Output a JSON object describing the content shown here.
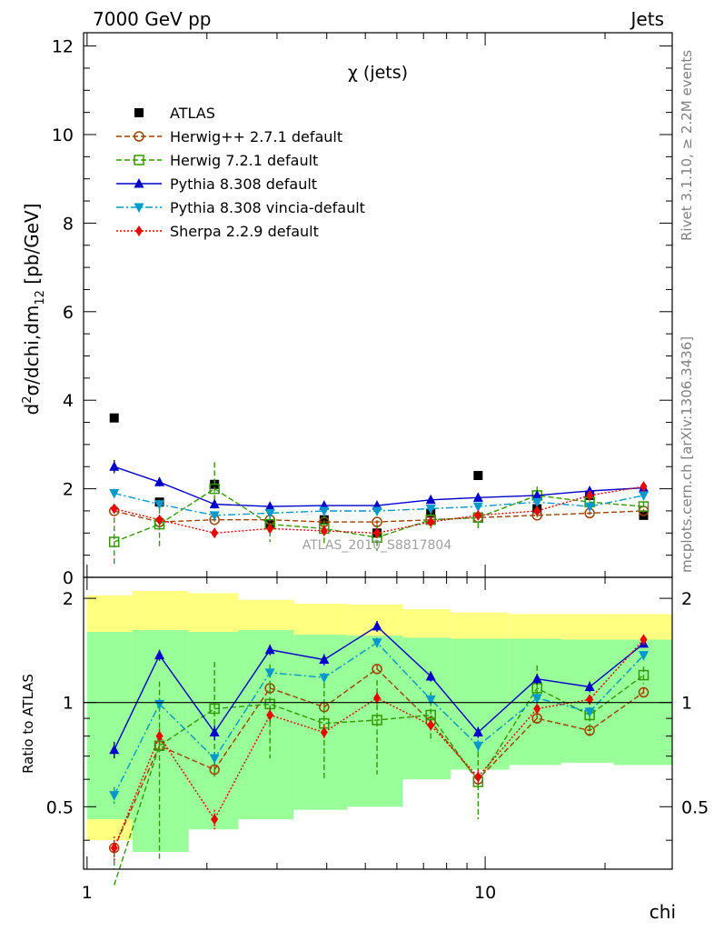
{
  "header": {
    "left": "7000 GeV pp",
    "right": "Jets"
  },
  "side_text": {
    "top": "Rivet 3.1.10, ≥ 2.2M events",
    "bottom": "mcplots.cern.ch [arXiv:1306.3436]"
  },
  "watermark": "ATLAS_2010_S8817804",
  "chart_data": [
    {
      "panel": "main",
      "type": "line",
      "title": "χ (jets)",
      "xlabel": "chi",
      "ylabel": "d²σ/dchi,dm₁₂ [pb/GeV]",
      "ylabel_parts": {
        "pre": "d",
        "sup": "2",
        "mid": "σ/dchi,dm",
        "sub": "12",
        "post": " [pb/GeV]"
      },
      "xscale": "log",
      "xlim": [
        0.98,
        29.5
      ],
      "ylim": [
        0,
        12.3
      ],
      "yticks": [
        "0",
        "2",
        "4",
        "6",
        "8",
        "10",
        "12"
      ],
      "grid": false,
      "legend_position": "top-left",
      "x": [
        1.17,
        1.52,
        2.09,
        2.88,
        3.94,
        5.35,
        7.3,
        9.6,
        13.5,
        18.3,
        25
      ],
      "series": [
        {
          "name": "ATLAS",
          "color": "#000000",
          "marker": "square",
          "values": [
            3.6,
            1.7,
            2.1,
            1.2,
            1.3,
            1.0,
            1.45,
            2.3,
            1.55,
            1.85,
            1.4
          ],
          "errors": [
            0.05,
            0.05,
            0.05,
            0.05,
            0.05,
            0.05,
            0.05,
            0.05,
            0.05,
            0.05,
            0.05
          ]
        },
        {
          "name": "Herwig++ 2.7.1 default",
          "color": "#a04000",
          "marker": "circle-open",
          "dash": "6,3",
          "values": [
            1.5,
            1.25,
            1.3,
            1.3,
            1.25,
            1.25,
            1.3,
            1.35,
            1.4,
            1.45,
            1.5
          ],
          "errors": [
            0.05,
            0.04,
            0.04,
            0.04,
            0.04,
            0.04,
            0.04,
            0.04,
            0.04,
            0.04,
            0.04
          ]
        },
        {
          "name": "Herwig 7.2.1 default",
          "color": "#339900",
          "marker": "square-open",
          "dash": "6,3",
          "values": [
            0.8,
            1.2,
            2.0,
            1.2,
            1.1,
            0.9,
            1.3,
            1.35,
            1.85,
            1.7,
            1.6
          ],
          "errors": [
            0.55,
            0.55,
            0.6,
            0.4,
            0.35,
            0.3,
            0.2,
            0.25,
            0.2,
            0.15,
            0.1
          ]
        },
        {
          "name": "Pythia 8.308 default",
          "color": "#0000cc",
          "marker": "triangle-up",
          "values": [
            2.5,
            2.15,
            1.65,
            1.6,
            1.62,
            1.62,
            1.75,
            1.8,
            1.85,
            1.95,
            2.02
          ],
          "errors": [
            0.15,
            0.1,
            0.08,
            0.07,
            0.06,
            0.06,
            0.05,
            0.05,
            0.05,
            0.05,
            0.05
          ]
        },
        {
          "name": "Pythia 8.308 vincia-default",
          "color": "#0099cc",
          "marker": "triangle-down",
          "dash": "8,3,2,3",
          "values": [
            1.9,
            1.65,
            1.4,
            1.45,
            1.5,
            1.5,
            1.55,
            1.6,
            1.7,
            1.6,
            1.85
          ],
          "errors": [
            0.1,
            0.08,
            0.07,
            0.06,
            0.06,
            0.06,
            0.05,
            0.05,
            0.05,
            0.05,
            0.05
          ]
        },
        {
          "name": "Sherpa 2.2.9 default",
          "color": "#ee0000",
          "marker": "diamond",
          "dash": "2,2",
          "values": [
            1.55,
            1.3,
            1.0,
            1.1,
            1.05,
            1.0,
            1.25,
            1.4,
            1.5,
            1.85,
            2.05
          ],
          "errors": [
            0.08,
            0.06,
            0.06,
            0.06,
            0.06,
            0.06,
            0.05,
            0.05,
            0.05,
            0.05,
            0.05
          ]
        }
      ]
    },
    {
      "panel": "ratio",
      "type": "line",
      "ylabel": "Ratio to ATLAS",
      "xlabel": "chi",
      "xscale": "log",
      "yscale": "log",
      "xlim": [
        0.98,
        29.5
      ],
      "ylim": [
        0.33,
        2.3
      ],
      "yticks": [
        "0.5",
        "1",
        "2"
      ],
      "xticks": [
        "1",
        "10"
      ],
      "reference_line": 1,
      "bin_edges": [
        1.0,
        1.3,
        1.8,
        2.4,
        3.3,
        4.5,
        6.2,
        8.2,
        11.5,
        15.5,
        21.0,
        29.5
      ],
      "bands": {
        "total_uncertainty": {
          "color": "#ffff80",
          "lower": [
            0.4,
            0.4,
            0.48,
            0.5,
            0.53,
            0.52,
            0.62,
            0.66,
            0.67,
            0.68,
            0.67
          ],
          "upper": [
            2.04,
            2.1,
            2.07,
            1.98,
            1.93,
            1.92,
            1.86,
            1.82,
            1.8,
            1.8,
            1.8
          ]
        },
        "statistical": {
          "color": "#99ff99",
          "lower": [
            0.46,
            0.37,
            0.43,
            0.46,
            0.49,
            0.5,
            0.6,
            0.64,
            0.66,
            0.67,
            0.66
          ],
          "upper": [
            1.6,
            1.62,
            1.6,
            1.62,
            1.57,
            1.56,
            1.54,
            1.53,
            1.53,
            1.52,
            1.52
          ]
        }
      },
      "x": [
        1.17,
        1.52,
        2.09,
        2.88,
        3.94,
        5.35,
        7.3,
        9.6,
        13.5,
        18.3,
        25
      ],
      "series": [
        {
          "name": "Herwig++ 2.7.1 default",
          "color": "#a04000",
          "marker": "circle-open",
          "dash": "6,3",
          "values": [
            0.38,
            0.75,
            0.64,
            1.1,
            0.97,
            1.25,
            0.88,
            0.6,
            0.9,
            0.83,
            1.07
          ],
          "errors": [
            0.02,
            0.03,
            0.03,
            0.04,
            0.04,
            0.04,
            0.03,
            0.03,
            0.03,
            0.03,
            0.03
          ]
        },
        {
          "name": "Herwig 7.2.1 default",
          "color": "#339900",
          "marker": "square-open",
          "dash": "6,3",
          "values": [
            0.25,
            0.75,
            0.96,
            0.99,
            0.87,
            0.89,
            0.92,
            0.59,
            1.1,
            0.92,
            1.2
          ],
          "errors": [
            0.12,
            0.4,
            0.35,
            0.3,
            0.27,
            0.27,
            0.15,
            0.13,
            0.18,
            0.1,
            0.07
          ]
        },
        {
          "name": "Pythia 8.308 default",
          "color": "#0000cc",
          "marker": "triangle-up",
          "values": [
            0.73,
            1.37,
            0.82,
            1.42,
            1.33,
            1.66,
            1.19,
            0.82,
            1.17,
            1.11,
            1.48
          ],
          "errors": [
            0.04,
            0.05,
            0.04,
            0.05,
            0.05,
            0.06,
            0.04,
            0.03,
            0.04,
            0.04,
            0.04
          ]
        },
        {
          "name": "Pythia 8.308 vincia-default",
          "color": "#0099cc",
          "marker": "triangle-down",
          "dash": "8,3,2,3",
          "values": [
            0.54,
            0.99,
            0.69,
            1.22,
            1.18,
            1.49,
            1.02,
            0.75,
            1.03,
            0.94,
            1.37
          ],
          "errors": [
            0.03,
            0.04,
            0.03,
            0.04,
            0.04,
            0.05,
            0.03,
            0.03,
            0.03,
            0.03,
            0.04
          ]
        },
        {
          "name": "Sherpa 2.2.9 default",
          "color": "#ee0000",
          "marker": "diamond",
          "dash": "2,2",
          "values": [
            0.38,
            0.8,
            0.46,
            0.92,
            0.82,
            1.03,
            0.86,
            0.61,
            0.96,
            1.02,
            1.52
          ],
          "errors": [
            0.03,
            0.04,
            0.03,
            0.04,
            0.04,
            0.04,
            0.03,
            0.03,
            0.03,
            0.03,
            0.04
          ]
        }
      ]
    }
  ]
}
